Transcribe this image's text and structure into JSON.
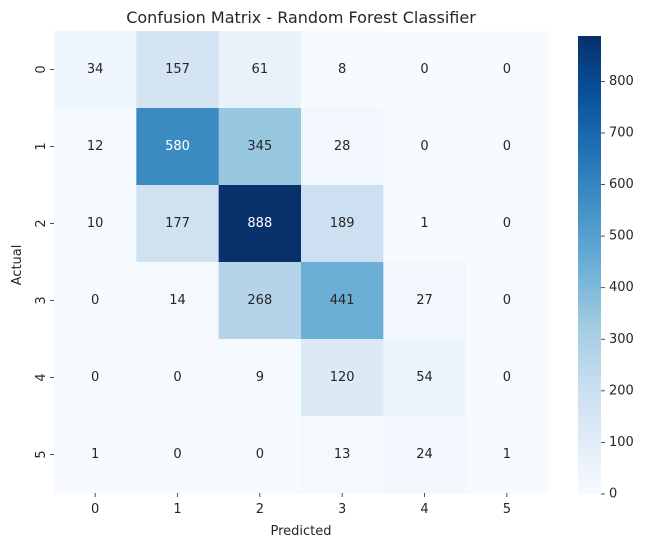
{
  "chart_data": {
    "type": "heatmap",
    "title": "Confusion Matrix - Random Forest Classifier",
    "xlabel": "Predicted",
    "ylabel": "Actual",
    "x_categories": [
      "0",
      "1",
      "2",
      "3",
      "4",
      "5"
    ],
    "y_categories": [
      "0",
      "1",
      "2",
      "3",
      "4",
      "5"
    ],
    "values": [
      [
        34,
        157,
        61,
        8,
        0,
        0
      ],
      [
        12,
        580,
        345,
        28,
        0,
        0
      ],
      [
        10,
        177,
        888,
        189,
        1,
        0
      ],
      [
        0,
        14,
        268,
        441,
        27,
        0
      ],
      [
        0,
        0,
        9,
        120,
        54,
        0
      ],
      [
        1,
        0,
        0,
        13,
        24,
        1
      ]
    ],
    "colormap": "Blues",
    "colorbar_range": [
      0,
      888
    ],
    "colorbar_ticks": [
      0,
      100,
      200,
      300,
      400,
      500,
      600,
      700,
      800
    ],
    "annotations": true,
    "grid": false
  }
}
